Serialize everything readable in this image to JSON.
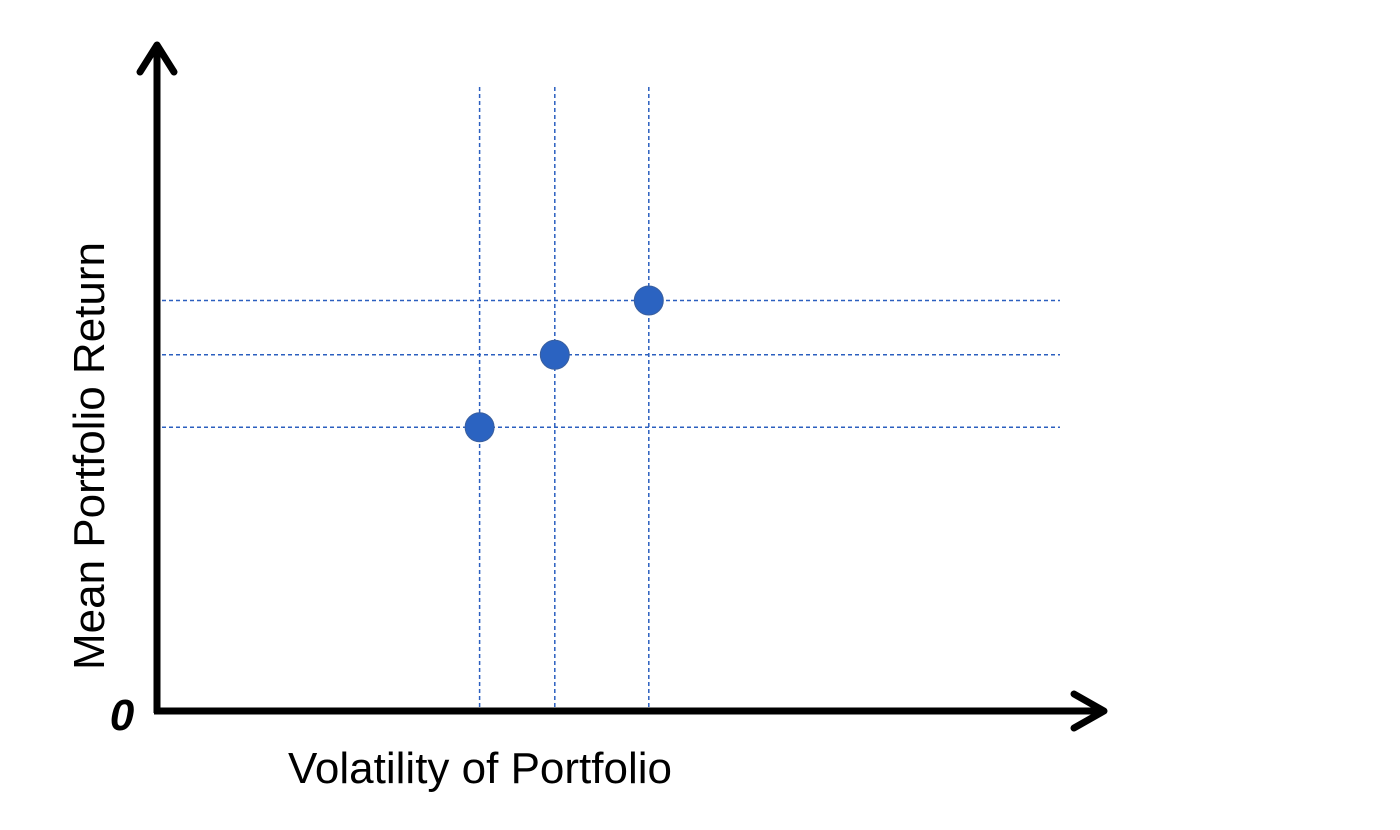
{
  "chart_data": {
    "type": "scatter",
    "title": "",
    "xlabel": "Volatility of Portfolio",
    "ylabel": "Mean Portfolio Return",
    "origin_label": "0",
    "xlim": [
      0,
      10
    ],
    "ylim": [
      0,
      10.7
    ],
    "grid": false,
    "guide_lines": "dashed lines from each point to both axes",
    "colors": {
      "point": "#2b63c1",
      "guide": "#2b5fbf",
      "axis": "#000000"
    },
    "points": [
      {
        "x": 3.4,
        "y": 4.7
      },
      {
        "x": 4.2,
        "y": 5.9
      },
      {
        "x": 5.2,
        "y": 6.8
      }
    ]
  }
}
